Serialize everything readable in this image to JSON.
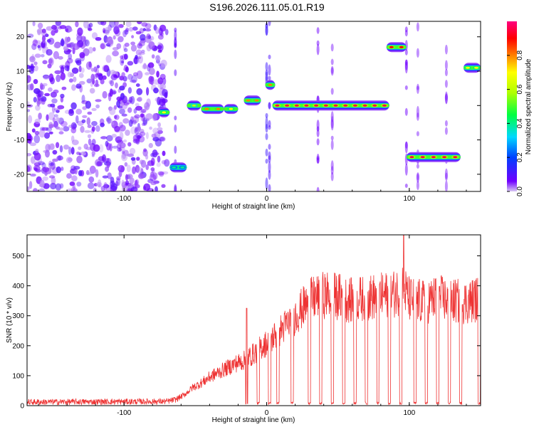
{
  "title": "S196.2026.111.05.01.R19",
  "chart_data": [
    {
      "type": "heatmap",
      "xlabel": "Height of straight line (km)",
      "ylabel": "Frequency (Hz)",
      "xlim": [
        -168,
        150
      ],
      "ylim": [
        -25,
        24.5
      ],
      "xticks": [
        -100,
        0,
        100
      ],
      "yticks": [
        -20,
        -10,
        0,
        10,
        20
      ],
      "colorbar": {
        "label": "Normalized spectral amplitude",
        "range": [
          0,
          1
        ],
        "ticks": [
          0.0,
          0.2,
          0.4,
          0.6,
          0.8
        ],
        "tick_labels": [
          "0.0",
          "0.2",
          "0.4",
          "0.6",
          "0.8"
        ],
        "colormap": [
          "#d8c8f4",
          "#7000ff",
          "#0040ff",
          "#00d8ff",
          "#00ff40",
          "#b0ff00",
          "#ffff00",
          "#ff8000",
          "#ff0000",
          "#ff0080"
        ]
      },
      "segments": [
        {
          "x": [
            -76,
            -68
          ],
          "f": -2,
          "peak": 0.7
        },
        {
          "x": [
            -68,
            -56
          ],
          "f": -18,
          "peak": 0.4
        },
        {
          "x": [
            -56,
            -46
          ],
          "f": 0,
          "peak": 0.6
        },
        {
          "x": [
            -46,
            -30
          ],
          "f": -1,
          "peak": 0.8
        },
        {
          "x": [
            -30,
            -20
          ],
          "f": -1,
          "peak": 0.7
        },
        {
          "x": [
            -16,
            -4
          ],
          "f": 1.5,
          "peak": 0.8
        },
        {
          "x": [
            -1,
            6
          ],
          "f": 6,
          "peak": 0.8
        },
        {
          "x": [
            4,
            86
          ],
          "f": 0,
          "peak": 0.95
        },
        {
          "x": [
            84,
            98
          ],
          "f": 17,
          "peak": 0.9
        },
        {
          "x": [
            98,
            136
          ],
          "f": -15,
          "peak": 0.95
        },
        {
          "x": [
            138,
            150
          ],
          "f": 11,
          "peak": 0.7
        }
      ]
    },
    {
      "type": "line",
      "xlabel": "Height of straight line (km)",
      "ylabel": "SNR (10 * v/v)",
      "xlim": [
        -168,
        150
      ],
      "ylim": [
        0,
        570
      ],
      "xticks": [
        -100,
        0,
        100
      ],
      "yticks": [
        0,
        100,
        200,
        300,
        400,
        500
      ],
      "color": "#ee3333",
      "envelope": {
        "x": [
          -168,
          -70,
          -64,
          -58,
          -52,
          -46,
          -40,
          -34,
          -28,
          -22,
          -16,
          -10,
          -4,
          2,
          8,
          14,
          20,
          26,
          32,
          40,
          50,
          60,
          70,
          80,
          90,
          96,
          100,
          110,
          120,
          130,
          140,
          150
        ],
        "y": [
          12,
          14,
          20,
          35,
          60,
          75,
          95,
          110,
          125,
          140,
          150,
          170,
          195,
          215,
          245,
          270,
          300,
          330,
          355,
          370,
          365,
          350,
          360,
          365,
          375,
          390,
          355,
          345,
          360,
          350,
          345,
          360
        ]
      },
      "spikes": [
        {
          "x": 96,
          "y": 570
        },
        {
          "x": -14,
          "y": 325
        }
      ],
      "dropouts": [
        -14,
        -6,
        2,
        8,
        18,
        30,
        38,
        46,
        54,
        62,
        70,
        78,
        86,
        94,
        104,
        112,
        120,
        128,
        136,
        149
      ]
    }
  ]
}
